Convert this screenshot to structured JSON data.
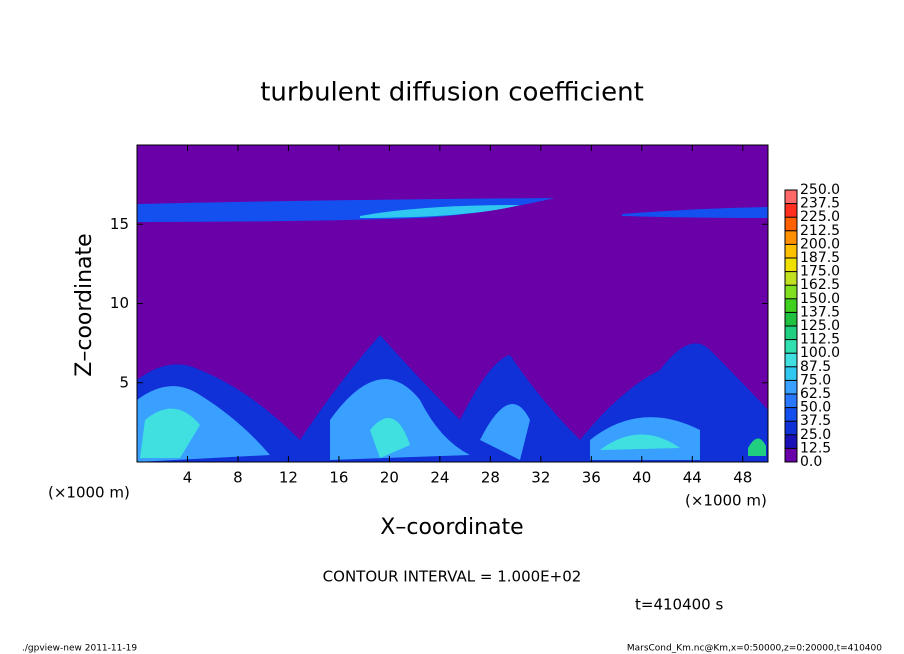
{
  "chart_data": {
    "type": "contour",
    "title": "turbulent diffusion coefficient",
    "x_label": "X–coordinate",
    "y_label": "Z–coordinate",
    "x_unit_label": "(×1000 m)",
    "y_unit_label": "(×1000 m)",
    "xlim": [
      0,
      50
    ],
    "xticks": [
      4,
      8,
      12,
      16,
      20,
      24,
      28,
      32,
      36,
      40,
      44,
      48
    ],
    "ylim": [
      0,
      20
    ],
    "yticks": [
      5,
      10,
      15
    ],
    "contour_note": "CONTOUR INTERVAL = 1.000E+02",
    "time_label": "t=410400 s",
    "footer_left": "./gpview-new   2011-11-19",
    "footer_right": "MarsCond_Km.nc@Km,x=0:50000,z=0:20000,t=410400",
    "colorbar": {
      "levels": [
        {
          "value": 0,
          "label": "0.0"
        },
        12.5,
        {
          "value": 25,
          "label": "25.0"
        },
        37.5,
        {
          "value": 50,
          "label": "50.0"
        },
        62.5,
        {
          "value": 75,
          "label": "75.0"
        },
        87.5,
        {
          "value": 100,
          "label": "100.0"
        },
        112.5,
        {
          "value": 125,
          "label": "125.0"
        },
        137.5,
        {
          "value": 150,
          "label": "150.0"
        },
        162.5,
        {
          "value": 175,
          "label": "175.0"
        },
        187.5,
        {
          "value": 200,
          "label": "200.0"
        },
        212.5,
        {
          "value": 225,
          "label": "225.0"
        },
        237.5,
        {
          "value": 250,
          "label": "250.0"
        }
      ],
      "colors": [
        "#6a00a8",
        "#1a10b8",
        "#1030d8",
        "#1450f0",
        "#2a78ff",
        "#3aa0ff",
        "#30c8f0",
        "#40e0e0",
        "#30e0b0",
        "#20d080",
        "#20c040",
        "#40d020",
        "#80e020",
        "#c0e020",
        "#f0e000",
        "#ffc000",
        "#ff9000",
        "#ff6000",
        "#ff3020",
        "#ff6868"
      ]
    }
  }
}
